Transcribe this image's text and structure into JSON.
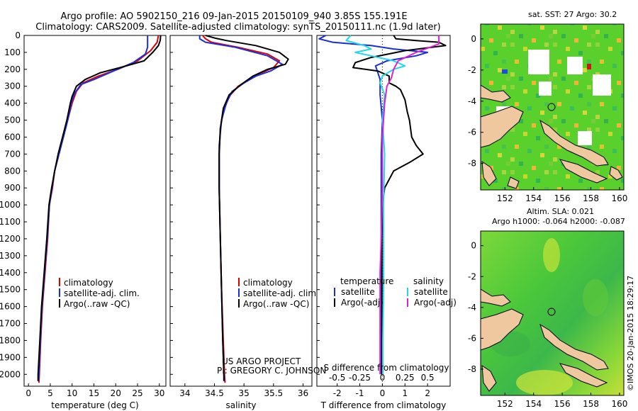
{
  "header": {
    "line1": "Argo profile: AO 5902150_216 09-Jan-2015 20150109_940 3.85S 155.191E",
    "line2": "Climatology: CARS2009. Satellite-adjusted climatology: synTS_20150111.nc (1.9d later)"
  },
  "colors": {
    "clim": "#e00000",
    "sat": "#1a2ee0",
    "argo": "#000000",
    "sat_sal": "#22d8e8",
    "argo_sal": "#e020d0"
  },
  "chart_data": [
    {
      "id": "temperature",
      "type": "line",
      "xlabel": "temperature (deg C)",
      "xlim": [
        -1,
        31.5
      ],
      "xticks": [
        0,
        5,
        10,
        15,
        20,
        25,
        30
      ],
      "ylim": [
        2070,
        0
      ],
      "yticks": [
        0,
        100,
        200,
        300,
        400,
        500,
        600,
        700,
        800,
        900,
        1000,
        1100,
        1200,
        1300,
        1400,
        1500,
        1600,
        1700,
        1800,
        1900,
        2000
      ],
      "legend": [
        "climatology",
        "satellite-adj. clim.",
        "Argo(..raw -QC)"
      ],
      "series": [
        {
          "name": "climatology",
          "color": "clim",
          "points": [
            [
              29.8,
              0
            ],
            [
              29.5,
              40
            ],
            [
              28,
              90
            ],
            [
              25,
              150
            ],
            [
              20.5,
              200
            ],
            [
              16,
              240
            ],
            [
              12.5,
              280
            ],
            [
              11,
              330
            ],
            [
              10,
              400
            ],
            [
              9,
              500
            ],
            [
              8,
              600
            ],
            [
              7,
              700
            ],
            [
              6,
              800
            ],
            [
              5.5,
              900
            ],
            [
              4.8,
              1000
            ],
            [
              4.4,
              1200
            ],
            [
              3.8,
              1400
            ],
            [
              3.2,
              1600
            ],
            [
              2.8,
              1800
            ],
            [
              2.5,
              2000
            ],
            [
              2.4,
              2050
            ]
          ]
        },
        {
          "name": "satellite-adj. clim.",
          "color": "sat",
          "points": [
            [
              27.3,
              0
            ],
            [
              27.3,
              70
            ],
            [
              26.8,
              110
            ],
            [
              24,
              160
            ],
            [
              19.5,
              210
            ],
            [
              15,
              260
            ],
            [
              12,
              290
            ],
            [
              10.6,
              340
            ],
            [
              9.8,
              400
            ],
            [
              9,
              500
            ],
            [
              8,
              600
            ],
            [
              7,
              700
            ],
            [
              6,
              800
            ],
            [
              5.4,
              900
            ],
            [
              4.8,
              1000
            ],
            [
              4.3,
              1200
            ],
            [
              3.7,
              1400
            ],
            [
              3.1,
              1600
            ],
            [
              2.7,
              1800
            ],
            [
              2.4,
              2000
            ],
            [
              2.3,
              2040
            ]
          ]
        },
        {
          "name": "Argo(..raw -QC)",
          "color": "argo",
          "points": [
            [
              30.3,
              0
            ],
            [
              30.2,
              30
            ],
            [
              29.8,
              60
            ],
            [
              28.5,
              100
            ],
            [
              26.5,
              150
            ],
            [
              21,
              190
            ],
            [
              16.5,
              220
            ],
            [
              13,
              260
            ],
            [
              11,
              300
            ],
            [
              10,
              360
            ],
            [
              9.6,
              400
            ],
            [
              8.8,
              500
            ],
            [
              7.8,
              600
            ],
            [
              6.8,
              700
            ],
            [
              6,
              800
            ],
            [
              5.3,
              900
            ],
            [
              4.7,
              1000
            ],
            [
              4.2,
              1200
            ],
            [
              3.6,
              1400
            ],
            [
              3,
              1600
            ],
            [
              2.6,
              1800
            ],
            [
              2.2,
              2000
            ],
            [
              2.2,
              2040
            ]
          ]
        }
      ]
    },
    {
      "id": "salinity",
      "type": "line",
      "xlabel": "salinity",
      "xlim": [
        33.75,
        36.15
      ],
      "xticks": [
        34,
        34.5,
        35,
        35.5,
        36
      ],
      "ylim": [
        2070,
        0
      ],
      "legend": [
        "climatology",
        "satellite-adj. clim.",
        "Argo(..raw -QC)"
      ],
      "series": [
        {
          "name": "climatology",
          "color": "clim",
          "points": [
            [
              34.3,
              0
            ],
            [
              34.35,
              20
            ],
            [
              34.45,
              40
            ],
            [
              34.9,
              70
            ],
            [
              35.4,
              110
            ],
            [
              35.6,
              150
            ],
            [
              35.5,
              190
            ],
            [
              35.3,
              220
            ],
            [
              35.1,
              260
            ],
            [
              34.9,
              300
            ],
            [
              34.75,
              360
            ],
            [
              34.65,
              450
            ],
            [
              34.6,
              550
            ],
            [
              34.58,
              700
            ],
            [
              34.58,
              900
            ],
            [
              34.6,
              1200
            ],
            [
              34.62,
              1500
            ],
            [
              34.65,
              1800
            ],
            [
              34.67,
              2000
            ],
            [
              34.68,
              2050
            ]
          ]
        },
        {
          "name": "satellite-adj. clim.",
          "color": "sat",
          "points": [
            [
              34.25,
              0
            ],
            [
              34.25,
              20
            ],
            [
              34.35,
              40
            ],
            [
              34.85,
              70
            ],
            [
              35.4,
              120
            ],
            [
              35.65,
              170
            ],
            [
              35.45,
              210
            ],
            [
              35.2,
              240
            ],
            [
              35,
              280
            ],
            [
              34.8,
              330
            ],
            [
              34.7,
              400
            ],
            [
              34.62,
              500
            ],
            [
              34.58,
              650
            ],
            [
              34.58,
              900
            ],
            [
              34.6,
              1200
            ],
            [
              34.62,
              1500
            ],
            [
              34.64,
              1800
            ],
            [
              34.66,
              2000
            ],
            [
              34.67,
              2040
            ]
          ]
        },
        {
          "name": "Argo(..raw -QC)",
          "color": "argo",
          "points": [
            [
              34.35,
              0
            ],
            [
              34.5,
              15
            ],
            [
              34.7,
              30
            ],
            [
              35.2,
              60
            ],
            [
              35.6,
              100
            ],
            [
              35.75,
              140
            ],
            [
              35.7,
              170
            ],
            [
              35.4,
              200
            ],
            [
              35.15,
              240
            ],
            [
              34.95,
              290
            ],
            [
              34.75,
              350
            ],
            [
              34.65,
              430
            ],
            [
              34.6,
              550
            ],
            [
              34.58,
              700
            ],
            [
              34.58,
              900
            ],
            [
              34.6,
              1200
            ],
            [
              34.62,
              1500
            ],
            [
              34.64,
              1800
            ],
            [
              34.66,
              2000
            ],
            [
              34.66,
              2040
            ]
          ]
        }
      ],
      "credit1": "US ARGO PROJECT",
      "credit2": "PI: GREGORY C. JOHNSON"
    },
    {
      "id": "difference",
      "type": "line",
      "xlabel": "T difference from climatology",
      "xlabel2": "S difference from climatology",
      "xlim": [
        -2.9,
        3.0
      ],
      "xticks": [
        -2,
        -1,
        0,
        1,
        2
      ],
      "sticks": [
        "-0.5",
        "-0.25",
        "0",
        "0.25",
        "0.5"
      ],
      "ylim": [
        2070,
        0
      ],
      "legend_titles": [
        "temperature",
        "salinity"
      ],
      "legend": [
        "satellite",
        "Argo(-adj)",
        "satellite",
        "Argo(-adj)"
      ],
      "series": [
        {
          "name": "temperature satellite",
          "color": "sat",
          "points": [
            [
              -2.5,
              0
            ],
            [
              -2.8,
              20
            ],
            [
              -2.2,
              40
            ],
            [
              -0.5,
              60
            ],
            [
              0.5,
              80
            ],
            [
              2,
              100
            ],
            [
              1.5,
              120
            ],
            [
              0.2,
              150
            ],
            [
              -0.3,
              180
            ],
            [
              -0.2,
              220
            ],
            [
              -0.1,
              260
            ],
            [
              -0.1,
              350
            ],
            [
              0,
              500
            ],
            [
              -0.05,
              700
            ],
            [
              -0.05,
              1000
            ],
            [
              -0.05,
              1300
            ],
            [
              -0.05,
              1600
            ],
            [
              -0.05,
              1800
            ],
            [
              -0.05,
              2000
            ]
          ]
        },
        {
          "name": "temperature Argo",
          "color": "argo",
          "points": [
            [
              0.5,
              0
            ],
            [
              0.6,
              20
            ],
            [
              1.5,
              30
            ],
            [
              2.5,
              40
            ],
            [
              2.8,
              60
            ],
            [
              1,
              90
            ],
            [
              -0.5,
              130
            ],
            [
              -1.2,
              160
            ],
            [
              -1.3,
              190
            ],
            [
              -0.2,
              210
            ],
            [
              0.3,
              240
            ],
            [
              0.3,
              280
            ],
            [
              0.6,
              300
            ],
            [
              0.8,
              320
            ],
            [
              1,
              380
            ],
            [
              1.1,
              450
            ],
            [
              1.2,
              500
            ],
            [
              1.3,
              600
            ],
            [
              1.5,
              650
            ],
            [
              1.8,
              700
            ],
            [
              1.2,
              750
            ],
            [
              0.5,
              800
            ],
            [
              0.1,
              900
            ],
            [
              0,
              1000
            ],
            [
              -0.02,
              1200
            ],
            [
              -0.02,
              1500
            ],
            [
              -0.02,
              1800
            ],
            [
              -0.02,
              2000
            ]
          ]
        },
        {
          "name": "salinity satellite",
          "color": "sat_sal",
          "points": [
            [
              -1.4,
              0
            ],
            [
              -1.6,
              30
            ],
            [
              -0.8,
              60
            ],
            [
              -0.5,
              80
            ],
            [
              -1.2,
              100
            ],
            [
              0.5,
              150
            ],
            [
              1,
              180
            ],
            [
              0.5,
              200
            ],
            [
              0,
              240
            ],
            [
              -0.1,
              280
            ],
            [
              0.1,
              350
            ],
            [
              0,
              500
            ],
            [
              0.1,
              700
            ],
            [
              0.05,
              1000
            ],
            [
              0.05,
              1500
            ],
            [
              0.02,
              1800
            ],
            [
              0.02,
              2000
            ]
          ]
        },
        {
          "name": "salinity Argo",
          "color": "argo_sal",
          "points": [
            [
              2.5,
              0
            ],
            [
              2.5,
              50
            ],
            [
              1.5,
              100
            ],
            [
              0.7,
              150
            ],
            [
              0.5,
              200
            ],
            [
              0.4,
              250
            ],
            [
              0.2,
              300
            ],
            [
              0.1,
              400
            ],
            [
              0.05,
              500
            ],
            [
              0,
              600
            ],
            [
              0,
              700
            ],
            [
              0,
              900
            ],
            [
              -0.05,
              1200
            ],
            [
              -0.1,
              1400
            ],
            [
              -0.1,
              1700
            ],
            [
              -0.1,
              2000
            ]
          ]
        }
      ]
    }
  ],
  "maps": {
    "sst": {
      "title": "sat. SST: 27 Argo: 30.2",
      "xticks": [
        "152",
        "154",
        "156",
        "158",
        "160"
      ],
      "yticks": [
        "0",
        "-2",
        "-4",
        "-6",
        "-8"
      ]
    },
    "sla": {
      "title1": "Altim. SLA: 0.021",
      "title2": "Argo h1000: -0.064 h2000: -0.087",
      "xticks": [
        "152",
        "154",
        "156",
        "158",
        "160"
      ],
      "yticks": [
        "0",
        "-2",
        "-4",
        "-6",
        "-8"
      ]
    },
    "float_lon": 155.191,
    "float_lat": -3.85
  },
  "footer": {
    "imos": "©IMOS 20-Jan-2015 18:29:17"
  }
}
